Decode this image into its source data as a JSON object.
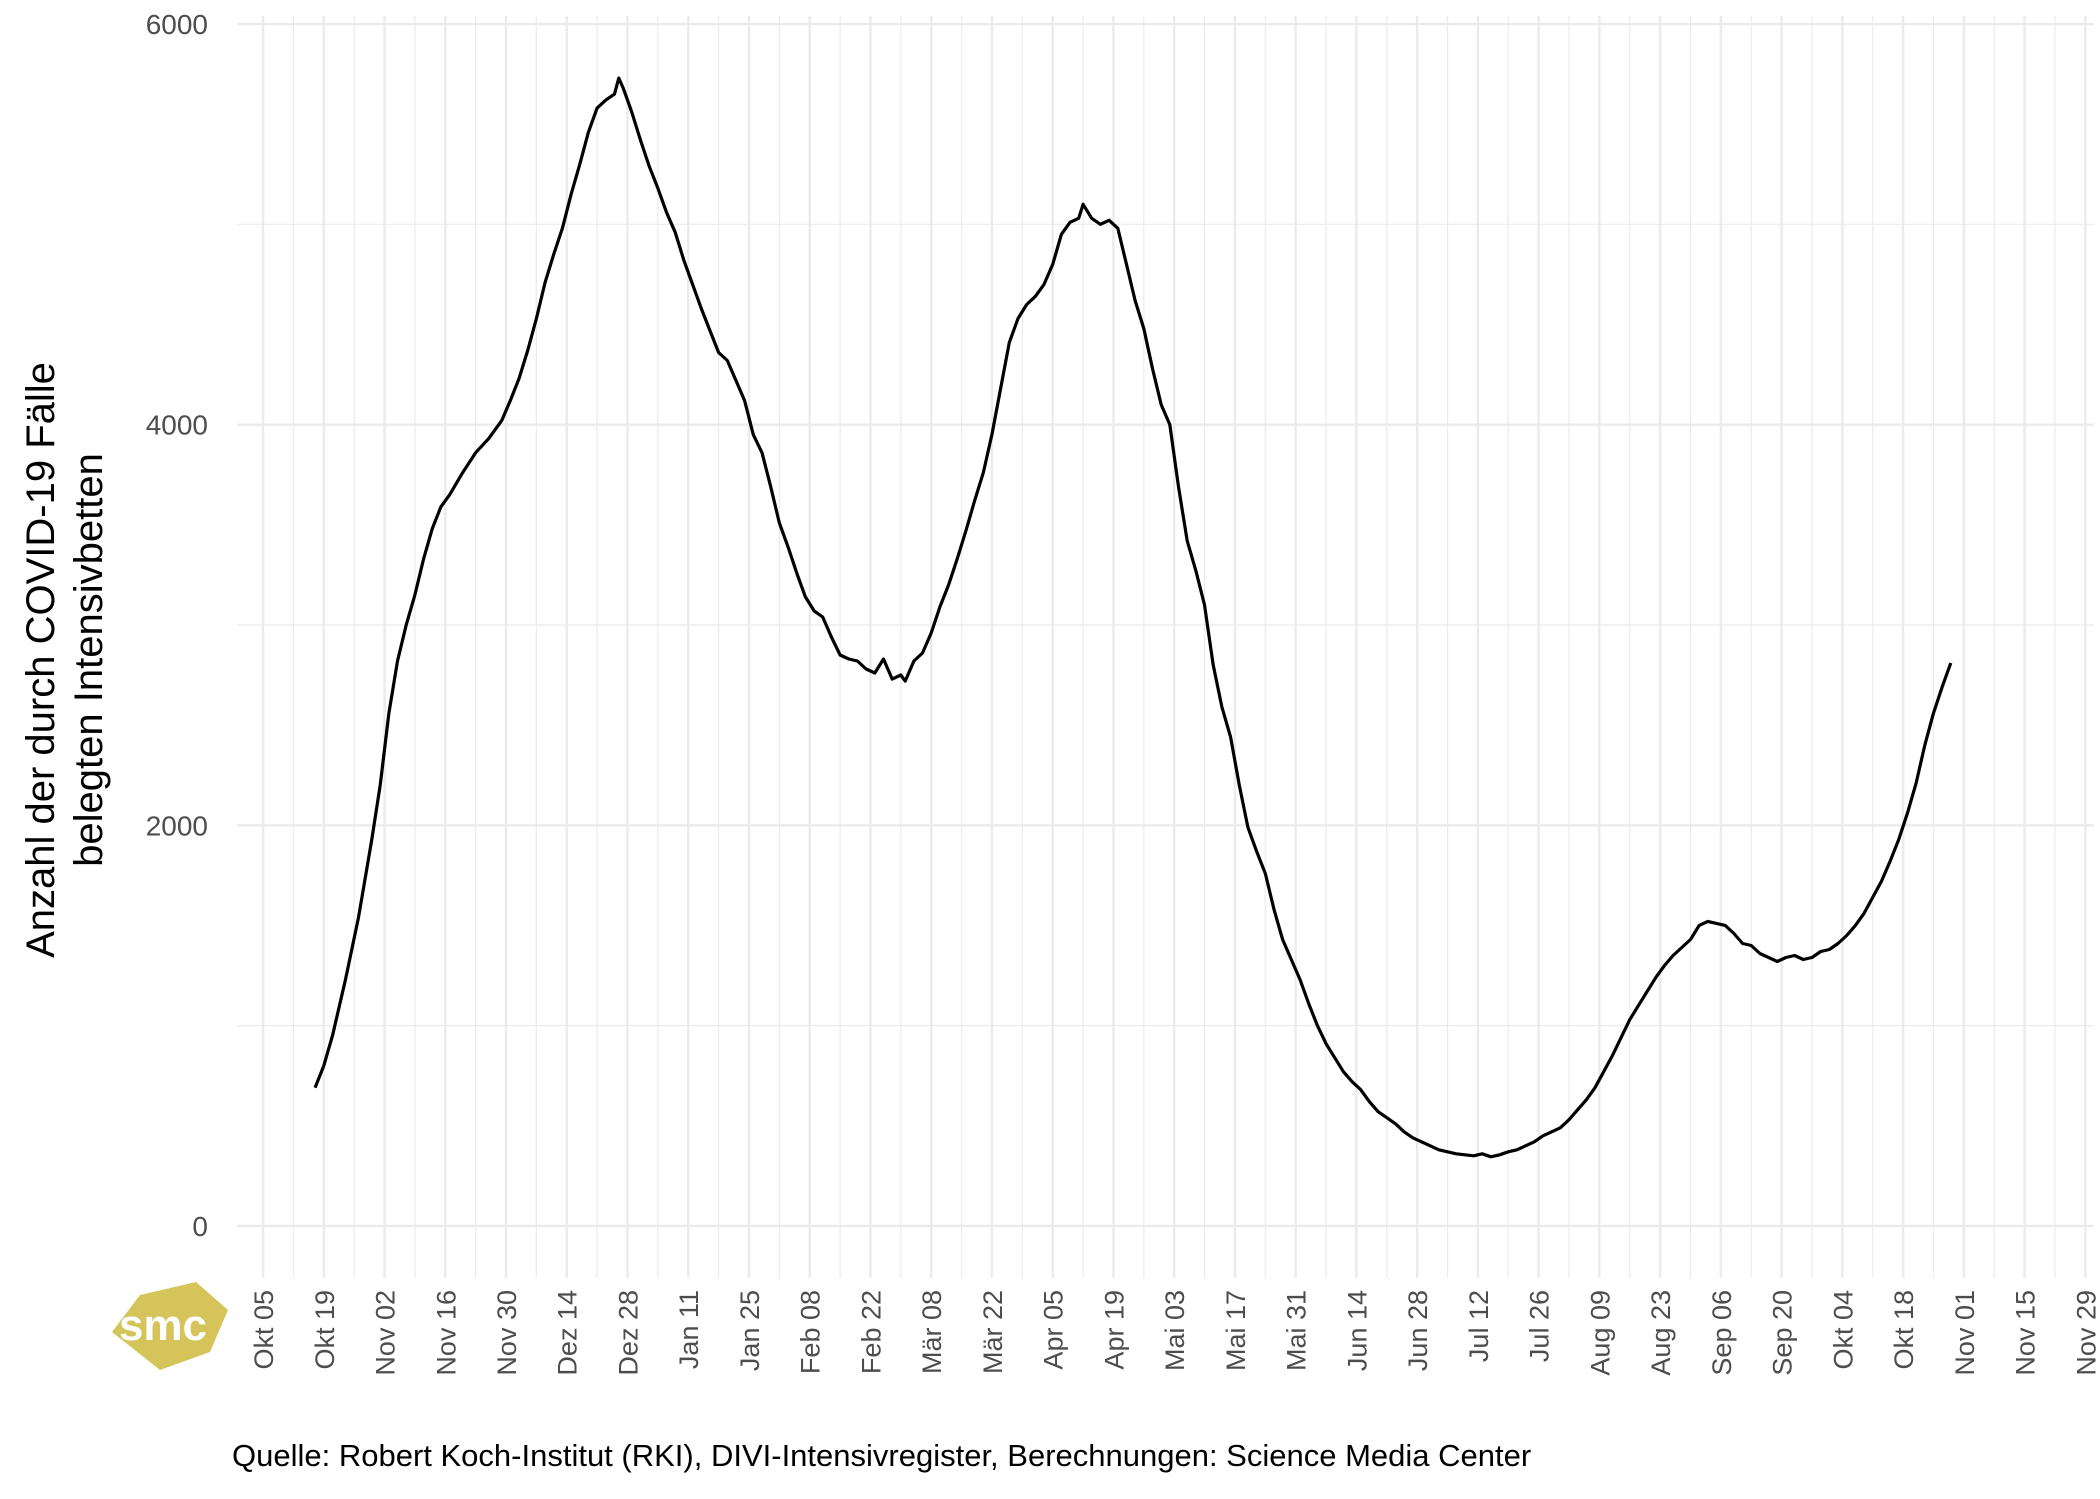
{
  "chart_data": {
    "type": "line",
    "ylabel_lines": [
      "Anzahl der durch COVID-19 Fälle",
      "belegten Intensivbetten"
    ],
    "xlabel": "",
    "ylim": [
      -260,
      6040
    ],
    "y_ticks": [
      0,
      2000,
      4000,
      6000
    ],
    "x_start": "2020-09-29",
    "x_end": "2021-12-01",
    "x_ticks": [
      {
        "date": "2020-10-05",
        "label": "Okt 05"
      },
      {
        "date": "2020-10-19",
        "label": "Okt 19"
      },
      {
        "date": "2020-11-02",
        "label": "Nov 02"
      },
      {
        "date": "2020-11-16",
        "label": "Nov 16"
      },
      {
        "date": "2020-11-30",
        "label": "Nov 30"
      },
      {
        "date": "2020-12-14",
        "label": "Dez 14"
      },
      {
        "date": "2020-12-28",
        "label": "Dez 28"
      },
      {
        "date": "2021-01-11",
        "label": "Jan 11"
      },
      {
        "date": "2021-01-25",
        "label": "Jan 25"
      },
      {
        "date": "2021-02-08",
        "label": "Feb 08"
      },
      {
        "date": "2021-02-22",
        "label": "Feb 22"
      },
      {
        "date": "2021-03-08",
        "label": "Mär 08"
      },
      {
        "date": "2021-03-22",
        "label": "Mär 22"
      },
      {
        "date": "2021-04-05",
        "label": "Apr 05"
      },
      {
        "date": "2021-04-19",
        "label": "Apr 19"
      },
      {
        "date": "2021-05-03",
        "label": "Mai 03"
      },
      {
        "date": "2021-05-17",
        "label": "Mai 17"
      },
      {
        "date": "2021-05-31",
        "label": "Mai 31"
      },
      {
        "date": "2021-06-14",
        "label": "Jun 14"
      },
      {
        "date": "2021-06-28",
        "label": "Jun 28"
      },
      {
        "date": "2021-07-12",
        "label": "Jul 12"
      },
      {
        "date": "2021-07-26",
        "label": "Jul 26"
      },
      {
        "date": "2021-08-09",
        "label": "Aug 09"
      },
      {
        "date": "2021-08-23",
        "label": "Aug 23"
      },
      {
        "date": "2021-09-06",
        "label": "Sep 06"
      },
      {
        "date": "2021-09-20",
        "label": "Sep 20"
      },
      {
        "date": "2021-10-04",
        "label": "Okt 04"
      },
      {
        "date": "2021-10-18",
        "label": "Okt 18"
      },
      {
        "date": "2021-11-01",
        "label": "Nov 01"
      },
      {
        "date": "2021-11-15",
        "label": "Nov 15"
      },
      {
        "date": "2021-11-29",
        "label": "Nov 29"
      }
    ],
    "grid": true,
    "series": [
      {
        "color": "#000000",
        "points": [
          [
            "2020-10-17",
            690
          ],
          [
            "2020-10-19",
            800
          ],
          [
            "2020-10-21",
            950
          ],
          [
            "2020-10-24",
            1230
          ],
          [
            "2020-10-27",
            1540
          ],
          [
            "2020-10-30",
            1920
          ],
          [
            "2020-11-01",
            2200
          ],
          [
            "2020-11-03",
            2560
          ],
          [
            "2020-11-05",
            2820
          ],
          [
            "2020-11-07",
            3000
          ],
          [
            "2020-11-09",
            3150
          ],
          [
            "2020-11-11",
            3330
          ],
          [
            "2020-11-13",
            3480
          ],
          [
            "2020-11-15",
            3590
          ],
          [
            "2020-11-17",
            3650
          ],
          [
            "2020-11-20",
            3760
          ],
          [
            "2020-11-23",
            3860
          ],
          [
            "2020-11-26",
            3930
          ],
          [
            "2020-11-29",
            4020
          ],
          [
            "2020-12-01",
            4120
          ],
          [
            "2020-12-03",
            4230
          ],
          [
            "2020-12-05",
            4370
          ],
          [
            "2020-12-07",
            4530
          ],
          [
            "2020-12-09",
            4710
          ],
          [
            "2020-12-11",
            4850
          ],
          [
            "2020-12-13",
            4980
          ],
          [
            "2020-12-15",
            5150
          ],
          [
            "2020-12-17",
            5300
          ],
          [
            "2020-12-19",
            5460
          ],
          [
            "2020-12-21",
            5580
          ],
          [
            "2020-12-23",
            5620
          ],
          [
            "2020-12-25",
            5650
          ],
          [
            "2020-12-26",
            5730
          ],
          [
            "2020-12-27",
            5680
          ],
          [
            "2020-12-29",
            5560
          ],
          [
            "2020-12-31",
            5420
          ],
          [
            "2021-01-02",
            5290
          ],
          [
            "2021-01-04",
            5180
          ],
          [
            "2021-01-06",
            5060
          ],
          [
            "2021-01-08",
            4960
          ],
          [
            "2021-01-10",
            4820
          ],
          [
            "2021-01-12",
            4700
          ],
          [
            "2021-01-14",
            4580
          ],
          [
            "2021-01-16",
            4470
          ],
          [
            "2021-01-18",
            4360
          ],
          [
            "2021-01-20",
            4320
          ],
          [
            "2021-01-22",
            4220
          ],
          [
            "2021-01-24",
            4120
          ],
          [
            "2021-01-26",
            3950
          ],
          [
            "2021-01-28",
            3860
          ],
          [
            "2021-01-30",
            3690
          ],
          [
            "2021-02-01",
            3510
          ],
          [
            "2021-02-03",
            3390
          ],
          [
            "2021-02-05",
            3260
          ],
          [
            "2021-02-07",
            3140
          ],
          [
            "2021-02-09",
            3070
          ],
          [
            "2021-02-11",
            3040
          ],
          [
            "2021-02-13",
            2940
          ],
          [
            "2021-02-15",
            2850
          ],
          [
            "2021-02-17",
            2830
          ],
          [
            "2021-02-19",
            2820
          ],
          [
            "2021-02-21",
            2780
          ],
          [
            "2021-02-23",
            2760
          ],
          [
            "2021-02-25",
            2830
          ],
          [
            "2021-02-27",
            2730
          ],
          [
            "2021-03-01",
            2750
          ],
          [
            "2021-03-02",
            2720
          ],
          [
            "2021-03-04",
            2820
          ],
          [
            "2021-03-06",
            2860
          ],
          [
            "2021-03-08",
            2960
          ],
          [
            "2021-03-10",
            3090
          ],
          [
            "2021-03-12",
            3200
          ],
          [
            "2021-03-14",
            3330
          ],
          [
            "2021-03-16",
            3470
          ],
          [
            "2021-03-18",
            3620
          ],
          [
            "2021-03-20",
            3760
          ],
          [
            "2021-03-22",
            3950
          ],
          [
            "2021-03-24",
            4180
          ],
          [
            "2021-03-26",
            4410
          ],
          [
            "2021-03-28",
            4530
          ],
          [
            "2021-03-30",
            4600
          ],
          [
            "2021-04-01",
            4640
          ],
          [
            "2021-04-03",
            4700
          ],
          [
            "2021-04-05",
            4800
          ],
          [
            "2021-04-07",
            4950
          ],
          [
            "2021-04-09",
            5010
          ],
          [
            "2021-04-11",
            5030
          ],
          [
            "2021-04-12",
            5100
          ],
          [
            "2021-04-14",
            5030
          ],
          [
            "2021-04-16",
            5000
          ],
          [
            "2021-04-18",
            5020
          ],
          [
            "2021-04-20",
            4980
          ],
          [
            "2021-04-22",
            4800
          ],
          [
            "2021-04-24",
            4620
          ],
          [
            "2021-04-26",
            4480
          ],
          [
            "2021-04-28",
            4280
          ],
          [
            "2021-04-30",
            4100
          ],
          [
            "2021-05-02",
            4000
          ],
          [
            "2021-05-04",
            3690
          ],
          [
            "2021-05-06",
            3420
          ],
          [
            "2021-05-08",
            3270
          ],
          [
            "2021-05-10",
            3100
          ],
          [
            "2021-05-12",
            2800
          ],
          [
            "2021-05-14",
            2590
          ],
          [
            "2021-05-16",
            2440
          ],
          [
            "2021-05-18",
            2200
          ],
          [
            "2021-05-20",
            1990
          ],
          [
            "2021-05-22",
            1870
          ],
          [
            "2021-05-24",
            1760
          ],
          [
            "2021-05-26",
            1580
          ],
          [
            "2021-05-28",
            1430
          ],
          [
            "2021-05-30",
            1330
          ],
          [
            "2021-06-01",
            1230
          ],
          [
            "2021-06-03",
            1110
          ],
          [
            "2021-06-05",
            1000
          ],
          [
            "2021-06-07",
            910
          ],
          [
            "2021-06-09",
            840
          ],
          [
            "2021-06-11",
            770
          ],
          [
            "2021-06-13",
            720
          ],
          [
            "2021-06-15",
            680
          ],
          [
            "2021-06-17",
            620
          ],
          [
            "2021-06-19",
            570
          ],
          [
            "2021-06-21",
            540
          ],
          [
            "2021-06-23",
            510
          ],
          [
            "2021-06-25",
            470
          ],
          [
            "2021-06-27",
            440
          ],
          [
            "2021-06-29",
            420
          ],
          [
            "2021-07-01",
            400
          ],
          [
            "2021-07-03",
            380
          ],
          [
            "2021-07-05",
            370
          ],
          [
            "2021-07-07",
            360
          ],
          [
            "2021-07-09",
            355
          ],
          [
            "2021-07-11",
            350
          ],
          [
            "2021-07-13",
            360
          ],
          [
            "2021-07-15",
            345
          ],
          [
            "2021-07-17",
            355
          ],
          [
            "2021-07-19",
            370
          ],
          [
            "2021-07-21",
            380
          ],
          [
            "2021-07-23",
            400
          ],
          [
            "2021-07-25",
            420
          ],
          [
            "2021-07-27",
            450
          ],
          [
            "2021-07-29",
            470
          ],
          [
            "2021-07-31",
            490
          ],
          [
            "2021-08-02",
            530
          ],
          [
            "2021-08-04",
            580
          ],
          [
            "2021-08-06",
            630
          ],
          [
            "2021-08-08",
            690
          ],
          [
            "2021-08-10",
            770
          ],
          [
            "2021-08-12",
            850
          ],
          [
            "2021-08-14",
            940
          ],
          [
            "2021-08-16",
            1030
          ],
          [
            "2021-08-18",
            1100
          ],
          [
            "2021-08-20",
            1170
          ],
          [
            "2021-08-22",
            1240
          ],
          [
            "2021-08-24",
            1300
          ],
          [
            "2021-08-26",
            1350
          ],
          [
            "2021-08-28",
            1390
          ],
          [
            "2021-08-30",
            1430
          ],
          [
            "2021-09-01",
            1500
          ],
          [
            "2021-09-03",
            1520
          ],
          [
            "2021-09-05",
            1510
          ],
          [
            "2021-09-07",
            1500
          ],
          [
            "2021-09-09",
            1460
          ],
          [
            "2021-09-11",
            1410
          ],
          [
            "2021-09-13",
            1400
          ],
          [
            "2021-09-15",
            1360
          ],
          [
            "2021-09-17",
            1340
          ],
          [
            "2021-09-19",
            1320
          ],
          [
            "2021-09-21",
            1340
          ],
          [
            "2021-09-23",
            1350
          ],
          [
            "2021-09-25",
            1330
          ],
          [
            "2021-09-27",
            1340
          ],
          [
            "2021-09-29",
            1370
          ],
          [
            "2021-10-01",
            1380
          ],
          [
            "2021-10-03",
            1410
          ],
          [
            "2021-10-05",
            1450
          ],
          [
            "2021-10-07",
            1500
          ],
          [
            "2021-10-09",
            1560
          ],
          [
            "2021-10-11",
            1640
          ],
          [
            "2021-10-13",
            1720
          ],
          [
            "2021-10-15",
            1820
          ],
          [
            "2021-10-17",
            1930
          ],
          [
            "2021-10-19",
            2060
          ],
          [
            "2021-10-21",
            2210
          ],
          [
            "2021-10-23",
            2400
          ],
          [
            "2021-10-25",
            2560
          ],
          [
            "2021-10-27",
            2690
          ],
          [
            "2021-10-29",
            2810
          ]
        ]
      }
    ]
  },
  "caption": "Quelle: Robert Koch-Institut (RKI), DIVI-Intensivregister, Berechnungen: Science Media Center",
  "logo": {
    "text": "smc",
    "color": "#d4c45a"
  }
}
